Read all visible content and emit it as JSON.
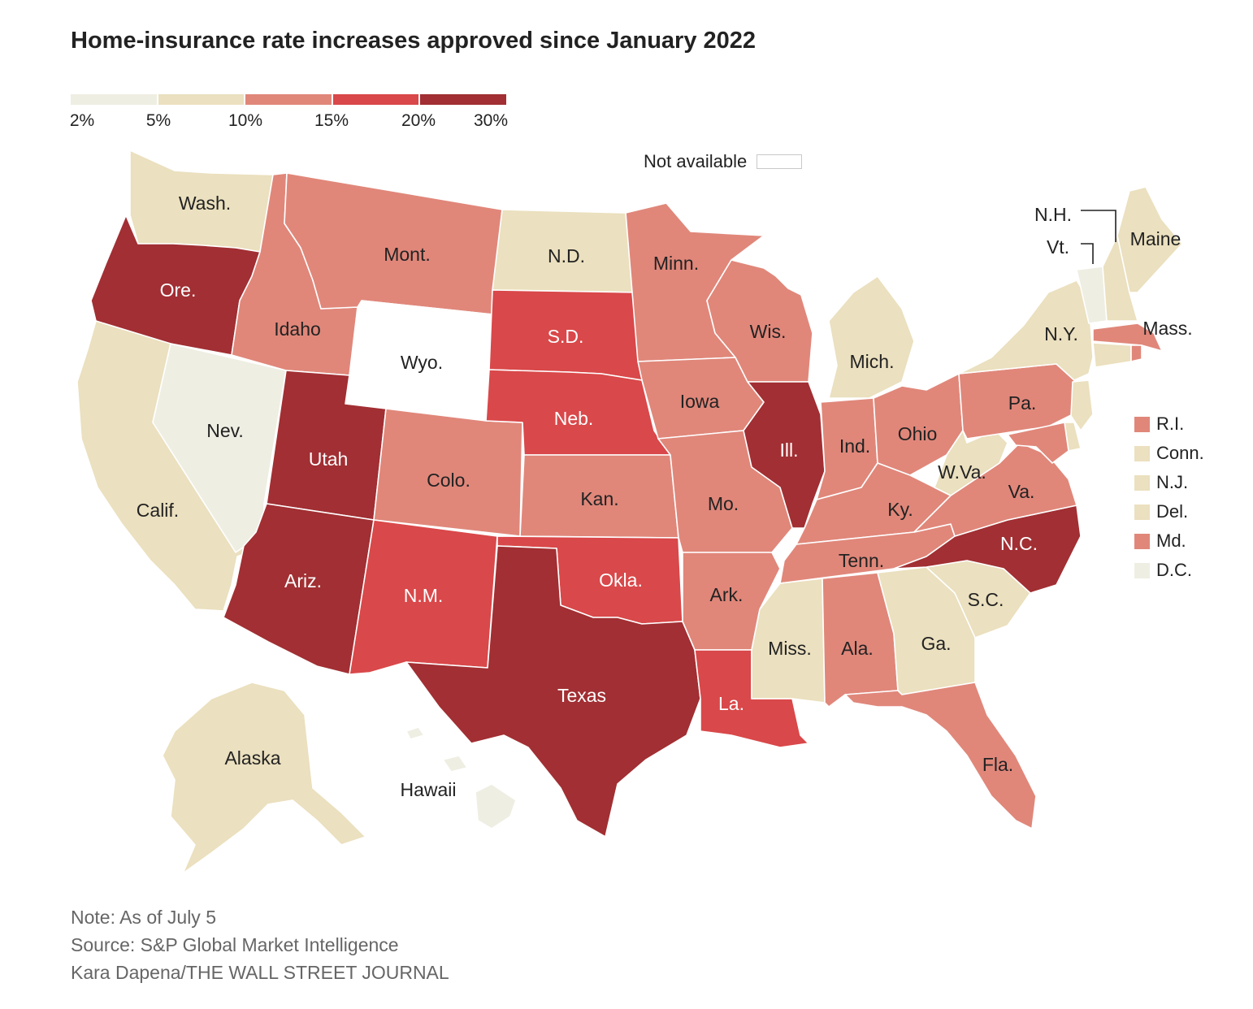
{
  "title": "Home-insurance rate increases approved since January 2022",
  "legend": {
    "ticks": [
      "2%",
      "5%",
      "10%",
      "15%",
      "20%",
      "30%"
    ],
    "colors": [
      "#efeee3",
      "#ebe0bf",
      "#e0877a",
      "#d9484a",
      "#a12f33"
    ],
    "not_available_label": "Not available",
    "not_available_color": "#ffffff"
  },
  "states": {
    "wash": {
      "label": "Wash.",
      "bin": 1
    },
    "ore": {
      "label": "Ore.",
      "bin": 4
    },
    "calif": {
      "label": "Calif.",
      "bin": 1
    },
    "nev": {
      "label": "Nev.",
      "bin": 0
    },
    "idaho": {
      "label": "Idaho",
      "bin": 2
    },
    "mont": {
      "label": "Mont.",
      "bin": 2
    },
    "wyo": {
      "label": "Wyo.",
      "bin": -1
    },
    "utah": {
      "label": "Utah",
      "bin": 4
    },
    "ariz": {
      "label": "Ariz.",
      "bin": 4
    },
    "colo": {
      "label": "Colo.",
      "bin": 2
    },
    "nm": {
      "label": "N.M.",
      "bin": 3
    },
    "nd": {
      "label": "N.D.",
      "bin": 1
    },
    "sd": {
      "label": "S.D.",
      "bin": 3
    },
    "neb": {
      "label": "Neb.",
      "bin": 3
    },
    "kan": {
      "label": "Kan.",
      "bin": 2
    },
    "okla": {
      "label": "Okla.",
      "bin": 3
    },
    "texas": {
      "label": "Texas",
      "bin": 4
    },
    "minn": {
      "label": "Minn.",
      "bin": 2
    },
    "iowa": {
      "label": "Iowa",
      "bin": 2
    },
    "mo": {
      "label": "Mo.",
      "bin": 2
    },
    "ark": {
      "label": "Ark.",
      "bin": 2
    },
    "la": {
      "label": "La.",
      "bin": 3
    },
    "wis": {
      "label": "Wis.",
      "bin": 2
    },
    "ill": {
      "label": "Ill.",
      "bin": 4
    },
    "mich": {
      "label": "Mich.",
      "bin": 1
    },
    "ind": {
      "label": "Ind.",
      "bin": 2
    },
    "ohio": {
      "label": "Ohio",
      "bin": 2
    },
    "ky": {
      "label": "Ky.",
      "bin": 2
    },
    "tenn": {
      "label": "Tenn.",
      "bin": 2
    },
    "miss": {
      "label": "Miss.",
      "bin": 1
    },
    "ala": {
      "label": "Ala.",
      "bin": 2
    },
    "ga": {
      "label": "Ga.",
      "bin": 1
    },
    "fla": {
      "label": "Fla.",
      "bin": 2
    },
    "sc": {
      "label": "S.C.",
      "bin": 1
    },
    "nc": {
      "label": "N.C.",
      "bin": 4
    },
    "va": {
      "label": "Va.",
      "bin": 2
    },
    "wva": {
      "label": "W.Va.",
      "bin": 1
    },
    "pa": {
      "label": "Pa.",
      "bin": 2
    },
    "ny": {
      "label": "N.Y.",
      "bin": 1
    },
    "vt": {
      "label": "Vt.",
      "bin": 0
    },
    "nh": {
      "label": "N.H.",
      "bin": 1
    },
    "maine": {
      "label": "Maine",
      "bin": 1
    },
    "mass": {
      "label": "Mass.",
      "bin": 2
    },
    "alaska": {
      "label": "Alaska",
      "bin": 1
    },
    "hawaii": {
      "label": "Hawaii",
      "bin": 0
    }
  },
  "small_states": [
    {
      "label": "R.I.",
      "bin": 2
    },
    {
      "label": "Conn.",
      "bin": 1
    },
    {
      "label": "N.J.",
      "bin": 1
    },
    {
      "label": "Del.",
      "bin": 1
    },
    {
      "label": "Md.",
      "bin": 2
    },
    {
      "label": "D.C.",
      "bin": 0
    }
  ],
  "notes": {
    "note": "Note: As of July 5",
    "source": "Source: S&P Global Market Intelligence",
    "credit": "Kara Dapena/THE WALL STREET JOURNAL"
  }
}
